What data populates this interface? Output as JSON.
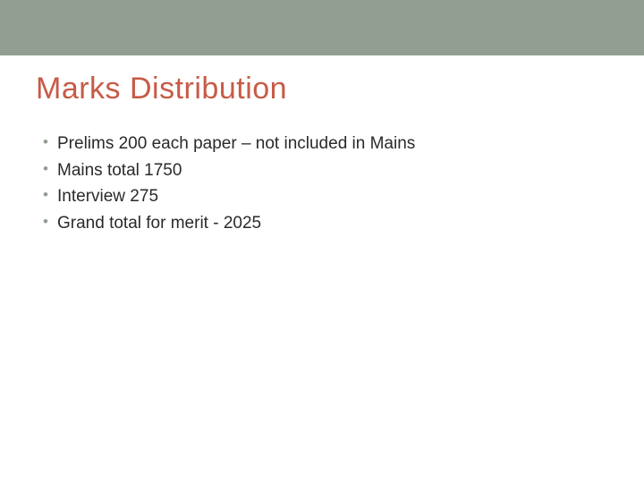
{
  "slide": {
    "title": "Marks Distribution",
    "title_color": "#c75b47",
    "title_fontsize": 34,
    "top_bar_color": "#929e91",
    "background_color": "#ffffff",
    "bullet_color": "#929e91",
    "text_color": "#2a2a2a",
    "bullet_fontsize": 19,
    "bullets": [
      "Prelims 200 each paper – not included in Mains",
      "Mains total 1750",
      "Interview 275",
      "Grand total for merit - 2025"
    ]
  }
}
